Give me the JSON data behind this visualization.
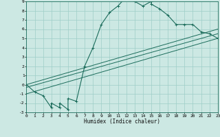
{
  "xlabel": "Humidex (Indice chaleur)",
  "bg_color": "#cce8e3",
  "grid_color": "#9ecec7",
  "line_color": "#1a6b5a",
  "xlim": [
    0,
    23
  ],
  "ylim": [
    -3,
    9
  ],
  "xticks": [
    0,
    1,
    2,
    3,
    4,
    5,
    6,
    7,
    8,
    9,
    10,
    11,
    12,
    13,
    14,
    15,
    16,
    17,
    18,
    19,
    20,
    21,
    22,
    23
  ],
  "yticks": [
    -3,
    -2,
    -1,
    0,
    1,
    2,
    3,
    4,
    5,
    6,
    7,
    8,
    9
  ],
  "main_x": [
    0,
    1,
    2,
    3,
    3,
    4,
    4,
    5,
    5,
    6,
    7,
    8,
    9,
    10,
    11,
    12,
    13,
    14,
    15,
    15,
    16,
    17,
    18,
    19,
    20,
    21,
    22,
    23
  ],
  "main_y": [
    0.0,
    -0.8,
    -1.2,
    -2.5,
    -2.0,
    -2.5,
    -2.0,
    -2.7,
    -1.5,
    -1.8,
    2.0,
    4.0,
    6.5,
    7.8,
    8.5,
    9.5,
    9.0,
    8.5,
    9.0,
    8.7,
    8.2,
    7.5,
    6.5,
    6.5,
    6.5,
    5.7,
    5.5,
    5.0
  ],
  "diag_lines": [
    {
      "x": [
        0,
        23
      ],
      "y": [
        0.0,
        6.0
      ]
    },
    {
      "x": [
        0,
        23
      ],
      "y": [
        -0.3,
        5.5
      ]
    },
    {
      "x": [
        0,
        23
      ],
      "y": [
        -1.0,
        5.0
      ]
    }
  ]
}
